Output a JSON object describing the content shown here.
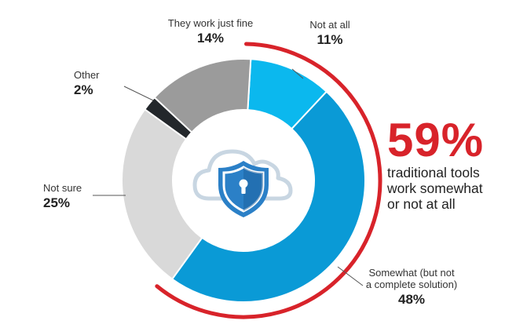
{
  "chart_data": {
    "type": "pie",
    "donut": true,
    "categories": [
      "Not at all",
      "Somewhat (but not a complete solution)",
      "Not sure",
      "Other",
      "They work just fine"
    ],
    "label_lines": [
      [
        "Not at all"
      ],
      [
        "Somewhat (but not",
        "a complete solution)"
      ],
      [
        "Not sure"
      ],
      [
        "Other"
      ],
      [
        "They work just fine"
      ]
    ],
    "values": [
      11,
      48,
      25,
      2,
      14
    ],
    "value_labels": [
      "11%",
      "48%",
      "25%",
      "2%",
      "14%"
    ],
    "colors": [
      "#0bb8ee",
      "#0a9ad6",
      "#d9d9d9",
      "#23272b",
      "#9b9b9b"
    ],
    "highlight_color": "#d8232a"
  },
  "callout": {
    "value": "59%",
    "lines": [
      "traditional tools",
      "work somewhat",
      "or not at all"
    ]
  },
  "center_icon": "cloud-shield-lock-icon"
}
